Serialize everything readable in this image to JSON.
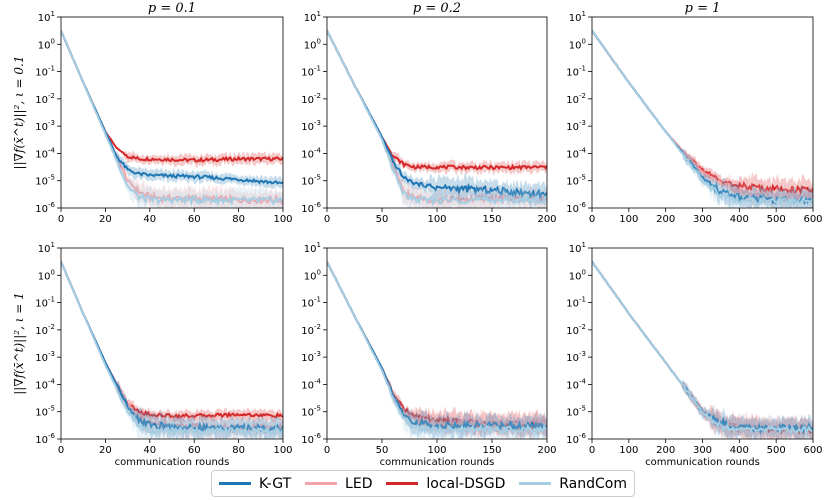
{
  "colors": {
    "kgt": "#1f77b4",
    "led": "#f4a3a8",
    "local_dsgd": "#d62728",
    "randcom": "#a6cee3"
  },
  "legend": [
    "K-GT",
    "LED",
    "local-DSGD",
    "RandCom"
  ],
  "chart_data": [
    {
      "type": "line",
      "title": "p = 0.1",
      "ylabel": "||∇f(x̄^t)||², ι = 0.1",
      "xlabel": "",
      "xlim": [
        0,
        100
      ],
      "ylim_log10": [
        -6,
        1
      ],
      "xticks": [
        "0",
        "20",
        "40",
        "60",
        "80",
        "100"
      ],
      "yticks": [
        "10^1",
        "10^0",
        "10^-1",
        "10^-2",
        "10^-3",
        "10^-4",
        "10^-5",
        "10^-6"
      ],
      "series": [
        {
          "name": "K-GT",
          "x": [
            0,
            10,
            20,
            25,
            30,
            35,
            40,
            60,
            80,
            100
          ],
          "log10_y": [
            0.5,
            -1.4,
            -3.2,
            -4.1,
            -4.6,
            -4.75,
            -4.8,
            -4.85,
            -4.95,
            -5.1
          ]
        },
        {
          "name": "LED",
          "x": [
            0,
            10,
            20,
            30,
            35,
            40,
            50,
            60,
            80,
            100
          ],
          "log10_y": [
            0.5,
            -1.4,
            -3.2,
            -5.0,
            -5.4,
            -5.6,
            -5.65,
            -5.65,
            -5.7,
            -5.7
          ]
        },
        {
          "name": "local-DSGD",
          "x": [
            0,
            10,
            20,
            25,
            30,
            35,
            40,
            60,
            80,
            100
          ],
          "log10_y": [
            0.5,
            -1.4,
            -3.2,
            -3.8,
            -4.1,
            -4.2,
            -4.2,
            -4.25,
            -4.2,
            -4.2
          ]
        },
        {
          "name": "RandCom",
          "x": [
            0,
            10,
            20,
            30,
            35,
            40,
            60,
            80,
            100
          ],
          "log10_y": [
            0.5,
            -1.4,
            -3.3,
            -5.2,
            -5.6,
            -5.7,
            -5.7,
            -5.72,
            -5.72
          ]
        }
      ]
    },
    {
      "type": "line",
      "title": "p = 0.2",
      "ylabel": "",
      "xlabel": "",
      "xlim": [
        0,
        200
      ],
      "ylim_log10": [
        -6,
        1
      ],
      "xticks": [
        "0",
        "50",
        "100",
        "150",
        "200"
      ],
      "yticks": [
        "10^1",
        "10^0",
        "10^-1",
        "10^-2",
        "10^-3",
        "10^-4",
        "10^-5",
        "10^-6"
      ],
      "series": [
        {
          "name": "K-GT",
          "x": [
            0,
            25,
            50,
            60,
            70,
            80,
            100,
            150,
            200
          ],
          "log10_y": [
            0.5,
            -1.5,
            -3.4,
            -4.3,
            -4.9,
            -5.1,
            -5.25,
            -5.35,
            -5.5
          ]
        },
        {
          "name": "LED",
          "x": [
            0,
            25,
            50,
            60,
            70,
            80,
            100,
            150,
            200
          ],
          "log10_y": [
            0.5,
            -1.5,
            -3.4,
            -4.5,
            -5.4,
            -5.65,
            -5.7,
            -5.65,
            -5.65
          ]
        },
        {
          "name": "local-DSGD",
          "x": [
            0,
            25,
            50,
            60,
            70,
            80,
            100,
            150,
            200
          ],
          "log10_y": [
            0.5,
            -1.5,
            -3.4,
            -4.1,
            -4.4,
            -4.5,
            -4.5,
            -4.52,
            -4.5
          ]
        },
        {
          "name": "RandCom",
          "x": [
            0,
            25,
            50,
            60,
            70,
            80,
            100,
            150,
            200
          ],
          "log10_y": [
            0.5,
            -1.5,
            -3.5,
            -4.6,
            -5.5,
            -5.7,
            -5.72,
            -5.7,
            -5.7
          ]
        }
      ]
    },
    {
      "type": "line",
      "title": "p = 1",
      "ylabel": "",
      "xlabel": "",
      "xlim": [
        0,
        600
      ],
      "ylim_log10": [
        -6,
        1
      ],
      "xticks": [
        "0",
        "100",
        "200",
        "300",
        "400",
        "500",
        "600"
      ],
      "yticks": [
        "10^1",
        "10^0",
        "10^-1",
        "10^-2",
        "10^-3",
        "10^-4",
        "10^-5",
        "10^-6"
      ],
      "series": [
        {
          "name": "K-GT",
          "x": [
            0,
            100,
            200,
            300,
            350,
            400,
            500,
            600
          ],
          "log10_y": [
            0.5,
            -1.4,
            -3.2,
            -4.9,
            -5.4,
            -5.6,
            -5.7,
            -5.7
          ]
        },
        {
          "name": "LED",
          "x": [
            0,
            100,
            200,
            300,
            350,
            400,
            500,
            600
          ],
          "log10_y": [
            0.5,
            -1.4,
            -3.2,
            -4.7,
            -5.1,
            -5.4,
            -5.6,
            -5.6
          ]
        },
        {
          "name": "local-DSGD",
          "x": [
            0,
            100,
            200,
            250,
            300,
            350,
            400,
            500,
            600
          ],
          "log10_y": [
            0.5,
            -1.4,
            -3.2,
            -4.0,
            -4.6,
            -5.0,
            -5.2,
            -5.3,
            -5.35
          ]
        },
        {
          "name": "RandCom",
          "x": [
            0,
            100,
            200,
            300,
            350,
            400,
            500,
            600
          ],
          "log10_y": [
            0.5,
            -1.4,
            -3.2,
            -5.0,
            -5.5,
            -5.72,
            -5.75,
            -5.75
          ]
        }
      ]
    },
    {
      "type": "line",
      "title": "",
      "ylabel": "||∇f(x̄^t)||², ι = 1",
      "xlabel": "communication rounds",
      "xlim": [
        0,
        100
      ],
      "ylim_log10": [
        -6,
        1
      ],
      "xticks": [
        "0",
        "20",
        "40",
        "60",
        "80",
        "100"
      ],
      "yticks": [
        "10^1",
        "10^0",
        "10^-1",
        "10^-2",
        "10^-3",
        "10^-4",
        "10^-5",
        "10^-6"
      ],
      "series": [
        {
          "name": "K-GT",
          "x": [
            0,
            10,
            20,
            30,
            35,
            40,
            50,
            60,
            80,
            100
          ],
          "log10_y": [
            0.5,
            -1.4,
            -3.2,
            -4.8,
            -5.3,
            -5.5,
            -5.55,
            -5.6,
            -5.6,
            -5.6
          ]
        },
        {
          "name": "LED",
          "x": [
            0,
            10,
            20,
            30,
            35,
            40,
            50,
            60,
            80,
            100
          ],
          "log10_y": [
            0.5,
            -1.4,
            -3.2,
            -4.7,
            -5.2,
            -5.4,
            -5.5,
            -5.55,
            -5.6,
            -5.6
          ]
        },
        {
          "name": "local-DSGD",
          "x": [
            0,
            10,
            20,
            25,
            30,
            35,
            40,
            50,
            60,
            80,
            100
          ],
          "log10_y": [
            0.5,
            -1.4,
            -3.2,
            -4.1,
            -4.7,
            -5.0,
            -5.1,
            -5.15,
            -5.15,
            -5.1,
            -5.15
          ]
        },
        {
          "name": "RandCom",
          "x": [
            0,
            10,
            20,
            30,
            35,
            40,
            50,
            60,
            80,
            100
          ],
          "log10_y": [
            0.5,
            -1.4,
            -3.3,
            -5.0,
            -5.5,
            -5.7,
            -5.7,
            -5.7,
            -5.72,
            -5.7
          ]
        }
      ]
    },
    {
      "type": "line",
      "title": "",
      "ylabel": "",
      "xlabel": "communication rounds",
      "xlim": [
        0,
        200
      ],
      "ylim_log10": [
        -6,
        1
      ],
      "xticks": [
        "0",
        "50",
        "100",
        "150",
        "200"
      ],
      "yticks": [
        "10^1",
        "10^0",
        "10^-1",
        "10^-2",
        "10^-3",
        "10^-4",
        "10^-5",
        "10^-6"
      ],
      "series": [
        {
          "name": "K-GT",
          "x": [
            0,
            25,
            50,
            60,
            70,
            80,
            100,
            150,
            200
          ],
          "log10_y": [
            0.5,
            -1.5,
            -3.4,
            -4.4,
            -5.1,
            -5.4,
            -5.5,
            -5.5,
            -5.55
          ]
        },
        {
          "name": "LED",
          "x": [
            0,
            25,
            50,
            60,
            70,
            80,
            100,
            150,
            200
          ],
          "log10_y": [
            0.5,
            -1.5,
            -3.4,
            -4.4,
            -5.1,
            -5.3,
            -5.4,
            -5.45,
            -5.4
          ]
        },
        {
          "name": "local-DSGD",
          "x": [
            0,
            25,
            50,
            60,
            70,
            80,
            100,
            150,
            200
          ],
          "log10_y": [
            0.5,
            -1.5,
            -3.4,
            -4.3,
            -4.9,
            -5.2,
            -5.35,
            -5.45,
            -5.5
          ]
        },
        {
          "name": "RandCom",
          "x": [
            0,
            25,
            50,
            60,
            70,
            80,
            100,
            150,
            200
          ],
          "log10_y": [
            0.5,
            -1.5,
            -3.5,
            -4.5,
            -5.3,
            -5.6,
            -5.65,
            -5.65,
            -5.65
          ]
        }
      ]
    },
    {
      "type": "line",
      "title": "",
      "ylabel": "",
      "xlabel": "communication rounds",
      "xlim": [
        0,
        600
      ],
      "ylim_log10": [
        -6,
        1
      ],
      "xticks": [
        "0",
        "100",
        "200",
        "300",
        "400",
        "500",
        "600"
      ],
      "yticks": [
        "10^1",
        "10^0",
        "10^-1",
        "10^-2",
        "10^-3",
        "10^-4",
        "10^-5",
        "10^-6"
      ],
      "series": [
        {
          "name": "K-GT",
          "x": [
            0,
            100,
            200,
            300,
            330,
            350,
            400,
            500,
            600
          ],
          "log10_y": [
            0.5,
            -1.4,
            -3.2,
            -5.0,
            -5.25,
            -5.4,
            -5.6,
            -5.6,
            -5.6
          ]
        },
        {
          "name": "LED",
          "x": [
            0,
            100,
            200,
            300,
            330,
            350,
            400,
            500,
            600
          ],
          "log10_y": [
            0.5,
            -1.4,
            -3.2,
            -5.0,
            -5.3,
            -5.45,
            -5.55,
            -5.6,
            -5.6
          ]
        },
        {
          "name": "local-DSGD",
          "x": [
            0,
            100,
            200,
            300,
            330,
            350,
            400,
            500,
            600
          ],
          "log10_y": [
            0.5,
            -1.4,
            -3.2,
            -5.0,
            -5.3,
            -5.5,
            -5.6,
            -5.65,
            -5.65
          ]
        },
        {
          "name": "RandCom",
          "x": [
            0,
            100,
            200,
            300,
            330,
            350,
            400,
            500,
            600
          ],
          "log10_y": [
            0.5,
            -1.4,
            -3.2,
            -5.0,
            -5.35,
            -5.55,
            -5.65,
            -5.65,
            -5.65
          ]
        }
      ]
    }
  ]
}
